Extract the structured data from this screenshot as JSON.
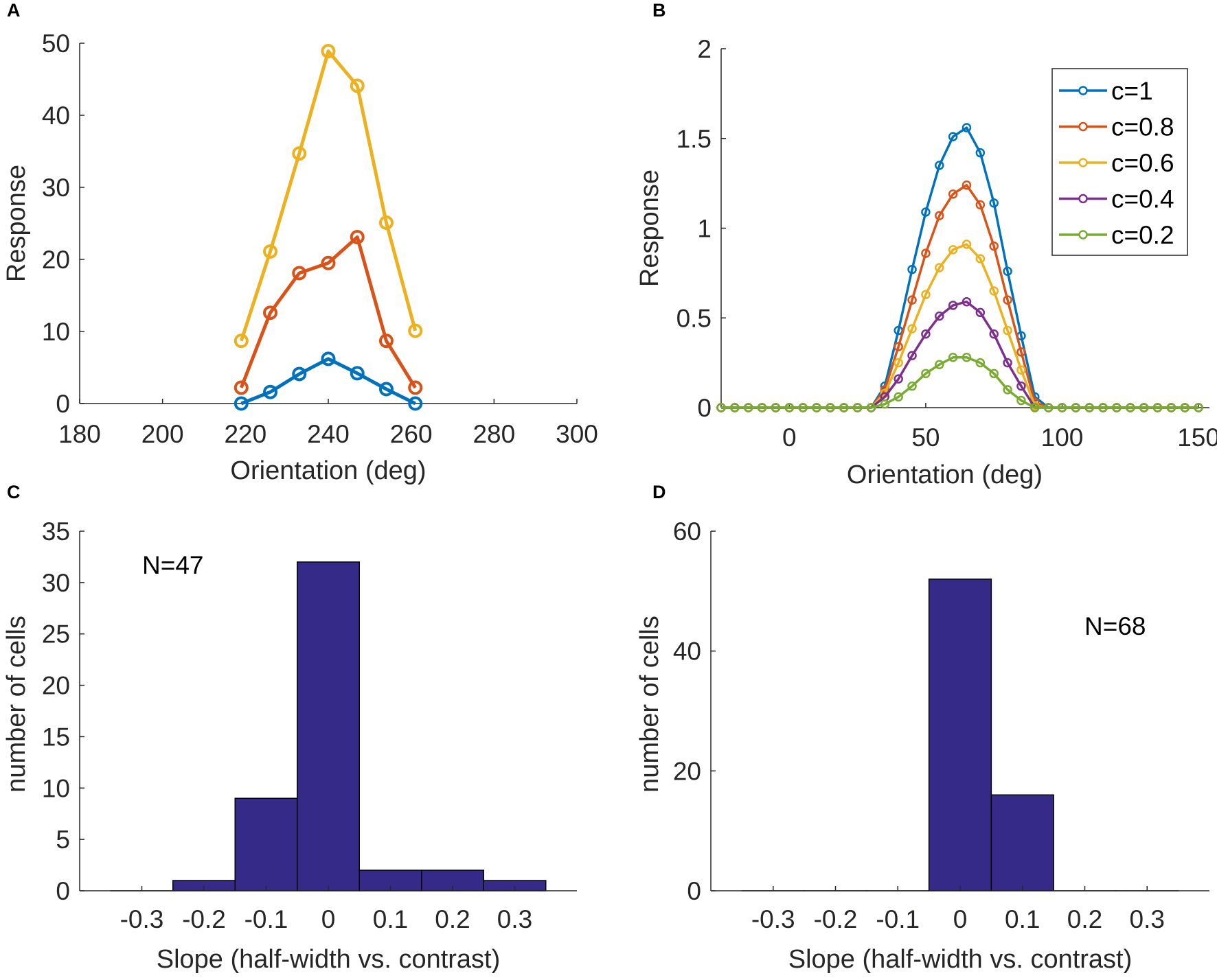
{
  "chart_data": [
    {
      "panel_label": "A",
      "type": "line",
      "xlabel": "Orientation (deg)",
      "ylabel": "Response",
      "xlim": [
        180,
        300
      ],
      "ylim": [
        0,
        50
      ],
      "xticks": [
        180,
        200,
        220,
        240,
        260,
        280,
        300
      ],
      "xtick_labels": [
        "180",
        "200",
        "220",
        "240",
        "260",
        "280",
        "300"
      ],
      "yticks": [
        0,
        10,
        20,
        30,
        40,
        50
      ],
      "ytick_labels": [
        "0",
        "10",
        "20",
        "30",
        "40",
        "50"
      ],
      "x": [
        219,
        226,
        233,
        240,
        247,
        254,
        261
      ],
      "series": [
        {
          "color": "#EDB120",
          "values": [
            8.7,
            21.1,
            34.7,
            48.9,
            44.1,
            25.1,
            10.1
          ]
        },
        {
          "color": "#D95319",
          "values": [
            2.2,
            12.6,
            18.1,
            19.5,
            23.1,
            8.7,
            2.2
          ]
        },
        {
          "color": "#0072BD",
          "values": [
            0,
            1.6,
            4.1,
            6.2,
            4.2,
            2.0,
            0
          ]
        }
      ],
      "grid": false
    },
    {
      "panel_label": "B",
      "type": "line",
      "xlabel": "Orientation (deg)",
      "ylabel": "Response",
      "xlim": [
        -25,
        154
      ],
      "ylim": [
        0,
        2
      ],
      "xticks": [
        0,
        50,
        100,
        150
      ],
      "xtick_labels": [
        "0",
        "50",
        "100",
        "150"
      ],
      "yticks": [
        0,
        0.5,
        1,
        1.5,
        2
      ],
      "ytick_labels": [
        "0",
        "0.5",
        "1",
        "1.5",
        "2"
      ],
      "x": [
        -25,
        -20,
        -15,
        -10,
        -5,
        0,
        5,
        10,
        15,
        20,
        25,
        30,
        35,
        40,
        45,
        50,
        55,
        60,
        65,
        70,
        75,
        80,
        85,
        90,
        95,
        100,
        105,
        110,
        115,
        120,
        125,
        130,
        135,
        140,
        145,
        150
      ],
      "series": [
        {
          "name": "c=1",
          "color": "#0072BD",
          "values": [
            0,
            0,
            0,
            0,
            0,
            0,
            0,
            0,
            0,
            0,
            0,
            0,
            0.12,
            0.43,
            0.77,
            1.09,
            1.35,
            1.51,
            1.56,
            1.42,
            1.14,
            0.76,
            0.4,
            0.06,
            0,
            0,
            0,
            0,
            0,
            0,
            0,
            0,
            0,
            0,
            0,
            0
          ]
        },
        {
          "name": "c=0.8",
          "color": "#D95319",
          "values": [
            0,
            0,
            0,
            0,
            0,
            0,
            0,
            0,
            0,
            0,
            0,
            0,
            0.1,
            0.34,
            0.6,
            0.86,
            1.07,
            1.19,
            1.24,
            1.13,
            0.9,
            0.6,
            0.31,
            0.03,
            0,
            0,
            0,
            0,
            0,
            0,
            0,
            0,
            0,
            0,
            0,
            0
          ]
        },
        {
          "name": "c=0.6",
          "color": "#EDB120",
          "values": [
            0,
            0,
            0,
            0,
            0,
            0,
            0,
            0,
            0,
            0,
            0,
            0,
            0.08,
            0.25,
            0.44,
            0.63,
            0.78,
            0.88,
            0.91,
            0.83,
            0.65,
            0.43,
            0.21,
            0.01,
            0,
            0,
            0,
            0,
            0,
            0,
            0,
            0,
            0,
            0,
            0,
            0
          ]
        },
        {
          "name": "c=0.4",
          "color": "#7E2F8E",
          "values": [
            0,
            0,
            0,
            0,
            0,
            0,
            0,
            0,
            0,
            0,
            0,
            0,
            0.06,
            0.16,
            0.29,
            0.41,
            0.51,
            0.57,
            0.59,
            0.53,
            0.41,
            0.25,
            0.12,
            0,
            0,
            0,
            0,
            0,
            0,
            0,
            0,
            0,
            0,
            0,
            0,
            0
          ]
        },
        {
          "name": "c=0.2",
          "color": "#77AC30",
          "values": [
            0,
            0,
            0,
            0,
            0,
            0,
            0,
            0,
            0,
            0,
            0,
            0,
            0.02,
            0.06,
            0.12,
            0.19,
            0.24,
            0.28,
            0.28,
            0.25,
            0.19,
            0.1,
            0.04,
            0,
            0,
            0,
            0,
            0,
            0,
            0,
            0,
            0,
            0,
            0,
            0,
            0
          ]
        }
      ],
      "legend": "top-right",
      "grid": false
    },
    {
      "panel_label": "C",
      "type": "bar",
      "xlabel": "Slope (half-width vs. contrast)",
      "ylabel": "number of cells",
      "annotation": "N=47",
      "xlim": [
        -0.4,
        0.4
      ],
      "ylim": [
        0,
        35
      ],
      "xticks": [
        -0.3,
        -0.2,
        -0.1,
        0,
        0.1,
        0.2,
        0.3
      ],
      "xtick_labels": [
        "-0.3",
        "-0.2",
        "-0.1",
        "0",
        "0.1",
        "0.2",
        "0.3"
      ],
      "yticks": [
        0,
        5,
        10,
        15,
        20,
        25,
        30,
        35
      ],
      "ytick_labels": [
        "0",
        "5",
        "10",
        "15",
        "20",
        "25",
        "30",
        "35"
      ],
      "categories": [
        -0.3,
        -0.2,
        -0.1,
        0,
        0.1,
        0.2,
        0.3
      ],
      "values": [
        0,
        1,
        9,
        32,
        2,
        2,
        1
      ],
      "color": "#352A87",
      "grid": false
    },
    {
      "panel_label": "D",
      "type": "bar",
      "xlabel": "Slope (half-width vs. contrast)",
      "ylabel": "number of cells",
      "annotation": "N=68",
      "xlim": [
        -0.4,
        0.4
      ],
      "ylim": [
        0,
        60
      ],
      "xticks": [
        -0.3,
        -0.2,
        -0.1,
        0,
        0.1,
        0.2,
        0.3
      ],
      "xtick_labels": [
        "-0.3",
        "-0.2",
        "-0.1",
        "0",
        "0.1",
        "0.2",
        "0.3"
      ],
      "yticks": [
        0,
        20,
        40,
        60
      ],
      "ytick_labels": [
        "0",
        "20",
        "40",
        "60"
      ],
      "categories": [
        -0.3,
        -0.2,
        -0.1,
        0,
        0.1,
        0.2,
        0.3
      ],
      "values": [
        0,
        0,
        0,
        52,
        16,
        0,
        0
      ],
      "color": "#352A87",
      "grid": false
    }
  ]
}
